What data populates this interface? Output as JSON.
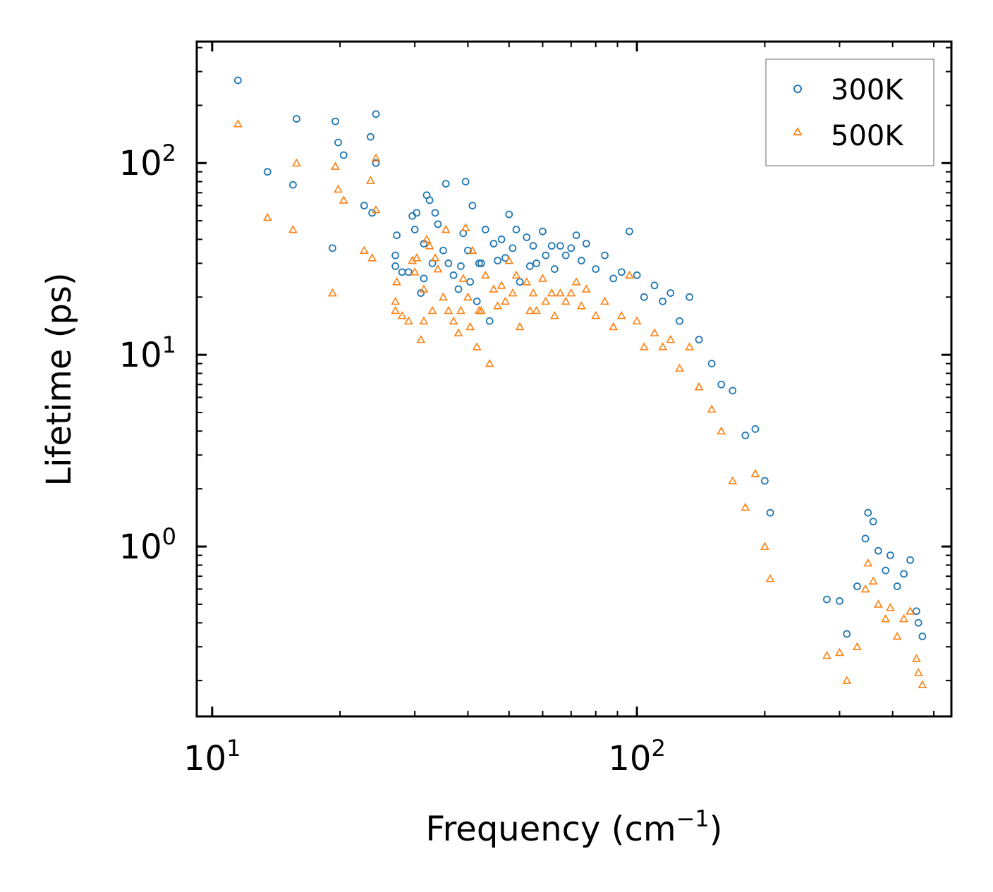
{
  "chart_data": {
    "type": "scatter",
    "xscale": "log",
    "yscale": "log",
    "xlim": [
      9.2,
      550
    ],
    "ylim": [
      0.13,
      430
    ],
    "xlabel": {
      "base": "Frequency (cm",
      "exp": "−1",
      "close": ")"
    },
    "ylabel": "Lifetime (ps)",
    "xticks": [
      {
        "value": 10,
        "base": "10",
        "exp": "1"
      },
      {
        "value": 100,
        "base": "10",
        "exp": "2"
      }
    ],
    "yticks": [
      {
        "value": 1,
        "base": "10",
        "exp": "0"
      },
      {
        "value": 10,
        "base": "10",
        "exp": "1"
      },
      {
        "value": 100,
        "base": "10",
        "exp": "2"
      }
    ],
    "legend": {
      "position": "top-right"
    },
    "series": [
      {
        "name": "300K",
        "label": "300K",
        "marker": "circle",
        "color": "#1f77b4",
        "points": [
          [
            11.5,
            270
          ],
          [
            13.5,
            90
          ],
          [
            15.5,
            77
          ],
          [
            15.8,
            170
          ],
          [
            19.2,
            36
          ],
          [
            19.5,
            165
          ],
          [
            19.8,
            128
          ],
          [
            20.4,
            110
          ],
          [
            22.8,
            60
          ],
          [
            23.6,
            137
          ],
          [
            23.8,
            55
          ],
          [
            24.3,
            180
          ],
          [
            24.3,
            100
          ],
          [
            27,
            33
          ],
          [
            27,
            29
          ],
          [
            27.2,
            42
          ],
          [
            28,
            27
          ],
          [
            29,
            27
          ],
          [
            29.6,
            53
          ],
          [
            30,
            45
          ],
          [
            30.3,
            55
          ],
          [
            31,
            21
          ],
          [
            31.5,
            38
          ],
          [
            31.5,
            25
          ],
          [
            32,
            68
          ],
          [
            32.5,
            64
          ],
          [
            33,
            30
          ],
          [
            33.5,
            55
          ],
          [
            34,
            48
          ],
          [
            35,
            35
          ],
          [
            35.5,
            78
          ],
          [
            36,
            30
          ],
          [
            37,
            26
          ],
          [
            38,
            22
          ],
          [
            38.5,
            29
          ],
          [
            39,
            43
          ],
          [
            39.5,
            80
          ],
          [
            40,
            35
          ],
          [
            40.5,
            24
          ],
          [
            41,
            60
          ],
          [
            42,
            19
          ],
          [
            42.5,
            30
          ],
          [
            43,
            30
          ],
          [
            44,
            45
          ],
          [
            45,
            15
          ],
          [
            46,
            38
          ],
          [
            47,
            31
          ],
          [
            48,
            40
          ],
          [
            49,
            32
          ],
          [
            50,
            54
          ],
          [
            51,
            36
          ],
          [
            52,
            45
          ],
          [
            53,
            24
          ],
          [
            55,
            41
          ],
          [
            56,
            29
          ],
          [
            57,
            37
          ],
          [
            58,
            30
          ],
          [
            60,
            44
          ],
          [
            61,
            33
          ],
          [
            63,
            37
          ],
          [
            64,
            28
          ],
          [
            66,
            37
          ],
          [
            68,
            33
          ],
          [
            70,
            36
          ],
          [
            72,
            42
          ],
          [
            74,
            31
          ],
          [
            76,
            38
          ],
          [
            80,
            28
          ],
          [
            84,
            33
          ],
          [
            88,
            25
          ],
          [
            92,
            27
          ],
          [
            96,
            44
          ],
          [
            100,
            26
          ],
          [
            104,
            20
          ],
          [
            110,
            23
          ],
          [
            115,
            19
          ],
          [
            120,
            21
          ],
          [
            126,
            15
          ],
          [
            133,
            20
          ],
          [
            140,
            12
          ],
          [
            150,
            9
          ],
          [
            158,
            7
          ],
          [
            168,
            6.5
          ],
          [
            180,
            3.8
          ],
          [
            190,
            4.1
          ],
          [
            200,
            2.2
          ],
          [
            206,
            1.5
          ],
          [
            280,
            0.53
          ],
          [
            300,
            0.52
          ],
          [
            312,
            0.35
          ],
          [
            330,
            0.62
          ],
          [
            345,
            1.1
          ],
          [
            350,
            1.5
          ],
          [
            360,
            1.35
          ],
          [
            370,
            0.95
          ],
          [
            385,
            0.75
          ],
          [
            395,
            0.9
          ],
          [
            410,
            0.62
          ],
          [
            425,
            0.72
          ],
          [
            440,
            0.85
          ],
          [
            455,
            0.46
          ],
          [
            460,
            0.4
          ],
          [
            470,
            0.34
          ]
        ]
      },
      {
        "name": "500K",
        "label": "500K",
        "marker": "triangle",
        "color": "#ff7f0e",
        "points": [
          [
            11.5,
            160
          ],
          [
            13.5,
            52
          ],
          [
            15.5,
            45
          ],
          [
            15.8,
            100
          ],
          [
            19.2,
            21
          ],
          [
            19.5,
            96
          ],
          [
            19.8,
            73
          ],
          [
            20.4,
            64
          ],
          [
            22.8,
            35
          ],
          [
            23.6,
            81
          ],
          [
            23.8,
            32
          ],
          [
            24.3,
            106
          ],
          [
            24.3,
            57
          ],
          [
            27,
            19
          ],
          [
            27,
            17
          ],
          [
            27.2,
            24
          ],
          [
            28,
            16
          ],
          [
            29,
            15
          ],
          [
            29.6,
            31
          ],
          [
            30,
            27
          ],
          [
            30.3,
            32
          ],
          [
            31,
            12
          ],
          [
            31.5,
            22
          ],
          [
            31.5,
            15
          ],
          [
            32,
            40
          ],
          [
            32.5,
            37
          ],
          [
            33,
            17
          ],
          [
            33.5,
            32
          ],
          [
            34,
            28
          ],
          [
            35,
            20
          ],
          [
            35.5,
            45
          ],
          [
            36,
            17
          ],
          [
            37,
            15
          ],
          [
            38,
            13
          ],
          [
            38.5,
            17
          ],
          [
            39,
            25
          ],
          [
            39.5,
            46
          ],
          [
            40,
            20
          ],
          [
            40.5,
            14
          ],
          [
            41,
            35
          ],
          [
            42,
            11
          ],
          [
            42.5,
            17
          ],
          [
            43,
            17
          ],
          [
            44,
            26
          ],
          [
            45,
            9
          ],
          [
            46,
            22
          ],
          [
            47,
            18
          ],
          [
            48,
            23
          ],
          [
            49,
            19
          ],
          [
            50,
            31
          ],
          [
            51,
            21
          ],
          [
            52,
            26
          ],
          [
            53,
            14
          ],
          [
            55,
            24
          ],
          [
            56,
            17
          ],
          [
            57,
            21
          ],
          [
            58,
            17
          ],
          [
            60,
            25
          ],
          [
            61,
            19
          ],
          [
            63,
            21
          ],
          [
            64,
            16
          ],
          [
            66,
            21
          ],
          [
            68,
            19
          ],
          [
            70,
            21
          ],
          [
            72,
            24
          ],
          [
            74,
            18
          ],
          [
            76,
            22
          ],
          [
            80,
            16
          ],
          [
            84,
            19
          ],
          [
            88,
            14
          ],
          [
            92,
            16
          ],
          [
            96,
            26
          ],
          [
            100,
            15
          ],
          [
            104,
            11
          ],
          [
            110,
            13
          ],
          [
            115,
            11
          ],
          [
            120,
            12
          ],
          [
            126,
            8.5
          ],
          [
            133,
            11
          ],
          [
            140,
            6.8
          ],
          [
            150,
            5.2
          ],
          [
            158,
            4.0
          ],
          [
            168,
            2.2
          ],
          [
            180,
            1.6
          ],
          [
            190,
            2.4
          ],
          [
            200,
            1.0
          ],
          [
            206,
            0.68
          ],
          [
            280,
            0.27
          ],
          [
            300,
            0.28
          ],
          [
            312,
            0.2
          ],
          [
            330,
            0.3
          ],
          [
            345,
            0.6
          ],
          [
            350,
            0.82
          ],
          [
            360,
            0.66
          ],
          [
            370,
            0.5
          ],
          [
            385,
            0.42
          ],
          [
            395,
            0.48
          ],
          [
            410,
            0.34
          ],
          [
            425,
            0.42
          ],
          [
            440,
            0.46
          ],
          [
            455,
            0.26
          ],
          [
            460,
            0.22
          ],
          [
            470,
            0.19
          ]
        ]
      }
    ]
  }
}
